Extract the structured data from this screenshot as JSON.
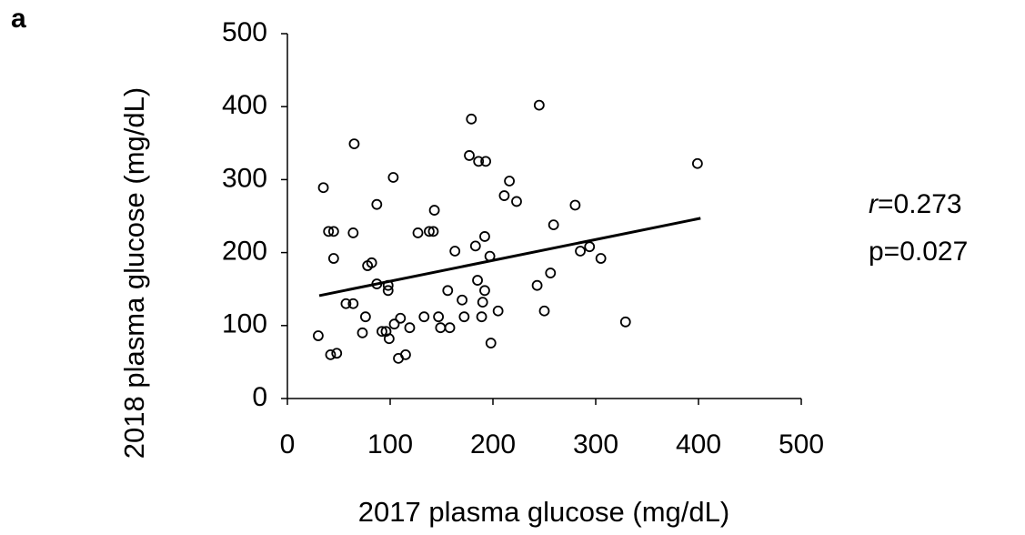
{
  "chart_data": {
    "type": "scatter",
    "panel_label": "a",
    "x_label": "2017 plasma glucose (mg/dL)",
    "y_label": "2018 plasma glucose (mg/dL)",
    "xlim": [
      0,
      500
    ],
    "ylim": [
      0,
      500
    ],
    "xticks": [
      0,
      100,
      200,
      300,
      400,
      500
    ],
    "yticks": [
      0,
      100,
      200,
      300,
      400,
      500
    ],
    "color": "#000000",
    "x": [
      30,
      35,
      40,
      45,
      45,
      42,
      48,
      65,
      64,
      57,
      64,
      73,
      76,
      78,
      82,
      87,
      87,
      92,
      96,
      98,
      98,
      99,
      103,
      104,
      108,
      110,
      115,
      119,
      127,
      133,
      138,
      142,
      143,
      147,
      149,
      156,
      158,
      163,
      170,
      172,
      177,
      179,
      183,
      185,
      186,
      189,
      190,
      192,
      192,
      193,
      197,
      198,
      205,
      211,
      216,
      223,
      243,
      245,
      250,
      256,
      259,
      280,
      285,
      294,
      305,
      329,
      399
    ],
    "y": [
      86,
      289,
      229,
      229,
      192,
      60,
      62,
      349,
      227,
      130,
      130,
      90,
      112,
      182,
      186,
      266,
      157,
      92,
      92,
      155,
      148,
      82,
      303,
      102,
      55,
      110,
      60,
      97,
      227,
      112,
      229,
      229,
      258,
      112,
      97,
      148,
      97,
      202,
      135,
      112,
      333,
      383,
      209,
      162,
      325,
      112,
      132,
      222,
      148,
      325,
      195,
      76,
      120,
      278,
      298,
      270,
      155,
      402,
      120,
      172,
      238,
      265,
      202,
      208,
      192,
      105,
      322
    ],
    "trendline": {
      "x": [
        31,
        402
      ],
      "y": [
        141,
        247
      ]
    },
    "annotations": {
      "r_symbol": "r",
      "r_value": "=0.273",
      "p_value": "p=0.027"
    }
  }
}
